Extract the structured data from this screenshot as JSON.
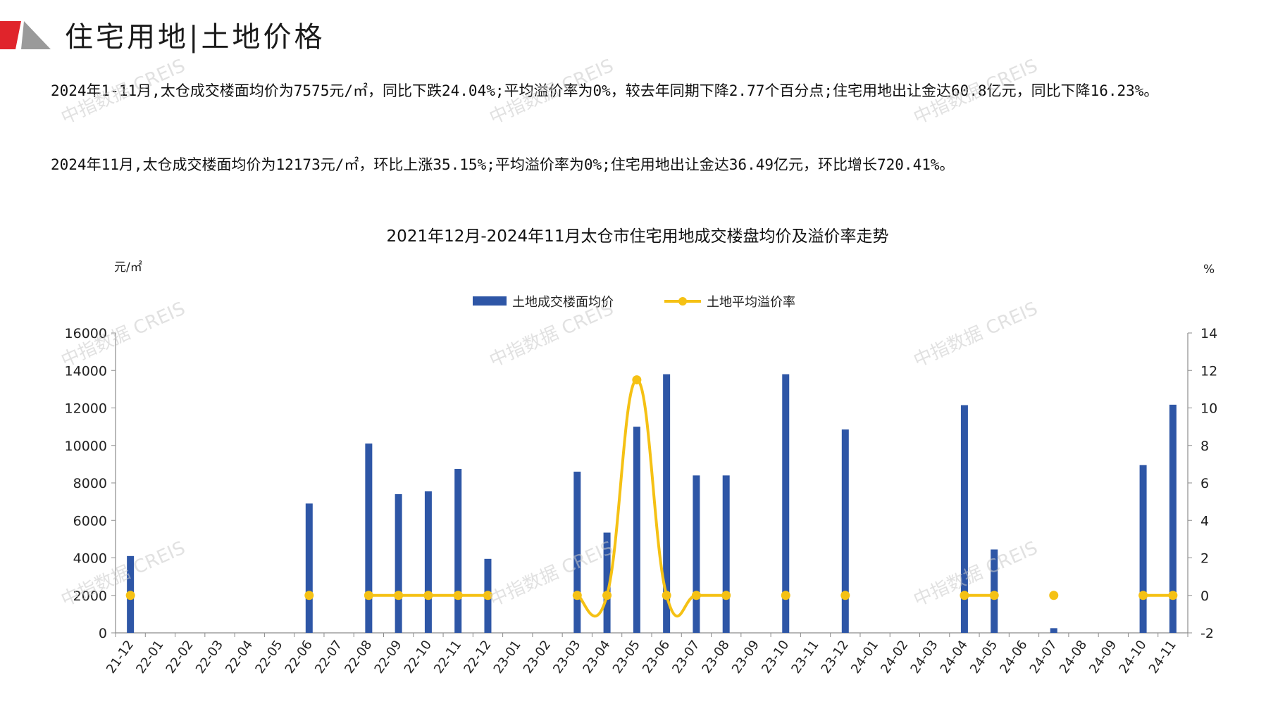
{
  "header": {
    "title": "住宅用地|土地价格"
  },
  "paragraphs": [
    "2024年1-11月,太仓成交楼面均价为7575元/㎡，同比下跌24.04%;平均溢价率为0%，较去年同期下降2.77个百分点;住宅用地出让金达60.8亿元，同比下降16.23%。",
    "2024年11月,太仓成交楼面均价为12173元/㎡，环比上涨35.15%;平均溢价率为0%;住宅用地出让金达36.49亿元，环比增长720.41%。"
  ],
  "watermark": "中指数据 CREIS",
  "colors": {
    "bar": "#2E56A6",
    "line": "#F5C114",
    "logo_red": "#E0242B",
    "logo_gray": "#9a9a9a"
  },
  "chart_data": {
    "type": "bar+line",
    "title": "2021年12月-2024年11月太仓市住宅用地成交楼盘均价及溢价率走势",
    "left_unit": "元/㎡",
    "right_unit": "%",
    "categories": [
      "21-12",
      "22-01",
      "22-02",
      "22-03",
      "22-04",
      "22-05",
      "22-06",
      "22-07",
      "22-08",
      "22-09",
      "22-10",
      "22-11",
      "22-12",
      "23-01",
      "23-02",
      "23-03",
      "23-04",
      "23-05",
      "23-06",
      "23-07",
      "23-08",
      "23-09",
      "23-10",
      "23-11",
      "23-12",
      "24-01",
      "24-02",
      "24-03",
      "24-04",
      "24-05",
      "24-06",
      "24-07",
      "24-08",
      "24-09",
      "24-10",
      "24-11"
    ],
    "left_axis": {
      "min": 0,
      "max": 16000,
      "ticks": [
        0,
        2000,
        4000,
        6000,
        8000,
        10000,
        12000,
        14000,
        16000
      ]
    },
    "right_axis": {
      "min": -2,
      "max": 14,
      "ticks": [
        -2,
        0,
        2,
        4,
        6,
        8,
        10,
        12,
        14
      ]
    },
    "legend_position": "top-center",
    "series": [
      {
        "name": "土地成交楼面均价",
        "type": "bar",
        "axis": "left",
        "values": [
          4100,
          null,
          null,
          null,
          null,
          null,
          6900,
          null,
          10100,
          7400,
          7550,
          8750,
          3950,
          null,
          null,
          8600,
          5350,
          11000,
          13800,
          8400,
          8400,
          null,
          13800,
          null,
          10850,
          null,
          null,
          null,
          12150,
          4450,
          null,
          250,
          null,
          null,
          8950,
          12173
        ]
      },
      {
        "name": "土地平均溢价率",
        "type": "line",
        "axis": "right",
        "values": [
          0,
          null,
          null,
          null,
          null,
          null,
          0,
          null,
          0,
          0,
          0,
          0,
          0,
          null,
          null,
          0,
          0,
          11.5,
          0,
          0,
          0,
          null,
          0,
          null,
          0,
          null,
          null,
          null,
          0,
          0,
          null,
          0,
          null,
          null,
          0,
          0
        ]
      }
    ]
  }
}
